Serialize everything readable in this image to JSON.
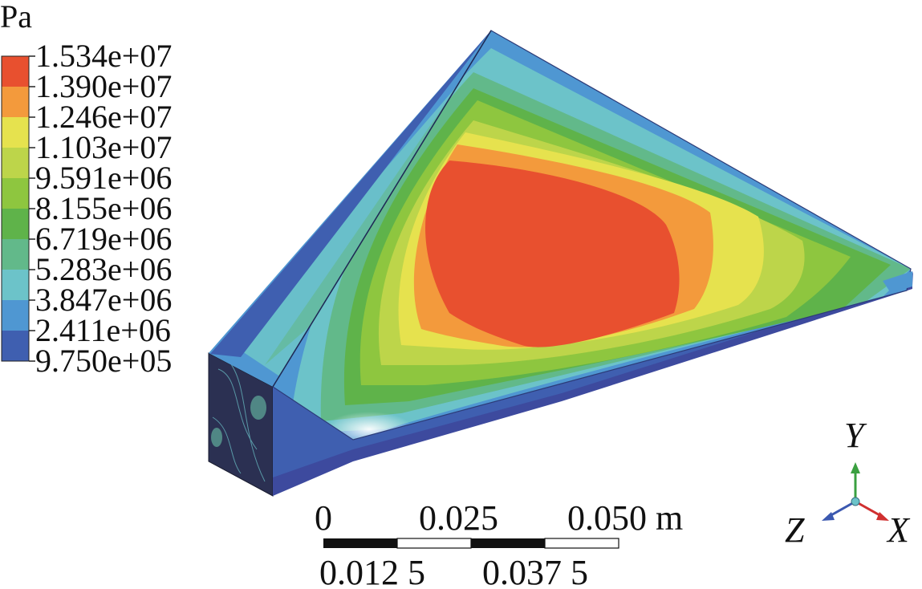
{
  "unit": "Pa",
  "legend": {
    "levels": [
      {
        "label": "1.534e+07",
        "color": "#e8502f"
      },
      {
        "label": "1.390e+07",
        "color": "#f39a3c"
      },
      {
        "label": "1.246e+07",
        "color": "#e6e24e"
      },
      {
        "label": "1.103e+07",
        "color": "#bdd54a"
      },
      {
        "label": "9.591e+06",
        "color": "#8ec63f"
      },
      {
        "label": "8.155e+06",
        "color": "#5fb34a"
      },
      {
        "label": "6.719e+06",
        "color": "#62b98a"
      },
      {
        "label": "5.283e+06",
        "color": "#6cc3c9"
      },
      {
        "label": "3.847e+06",
        "color": "#4f97d2"
      },
      {
        "label": "2.411e+06",
        "color": "#3f5fb0"
      },
      {
        "label": "9.750e+05",
        "color": ""
      }
    ],
    "bottom_color": "#3d4a9e"
  },
  "scale_bar": {
    "top_labels": [
      "0",
      "0.025",
      "0.050 m"
    ],
    "bottom_labels": [
      "0.012 5",
      "0.037 5"
    ]
  },
  "axes_triad": {
    "y_label": "Y",
    "z_label": "Z",
    "x_label": "X",
    "y_color": "#3aa040",
    "z_color": "#3b58b0",
    "x_color": "#d03030"
  }
}
